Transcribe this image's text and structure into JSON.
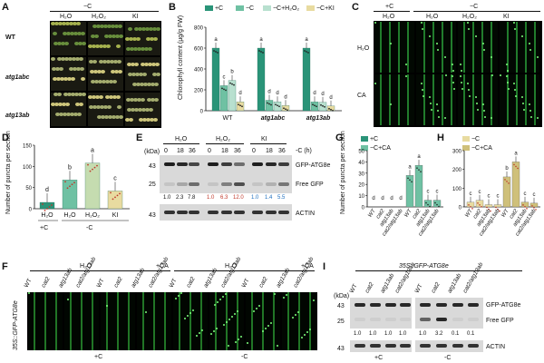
{
  "panelA": {
    "label": "A",
    "header": "−C",
    "cols": [
      "H₂O",
      "H₂O₂",
      "KI"
    ],
    "rows": [
      "WT",
      "atg1abc",
      "atg13ab"
    ]
  },
  "panelB": {
    "label": "B",
    "legend": [
      "+C",
      "−C",
      "−C+H₂O₂",
      "−C+KI"
    ],
    "ylabel": "Chlorophyll content (µg/g FW)",
    "groups": [
      "WT",
      "atg1abc",
      "atg13ab"
    ],
    "legend_colors": [
      "#2a9478",
      "#6fc1a3",
      "#b8e0cf",
      "#e8dba0"
    ]
  },
  "panelC": {
    "label": "C",
    "header_plus": "+C",
    "header_minus": "−C",
    "cols": [
      "H₂O",
      "H₂O",
      "H₂O₂",
      "KI"
    ],
    "rows": [
      "H₂O",
      "CA"
    ]
  },
  "panelD": {
    "label": "D",
    "ylabel": "Number of puncta per section",
    "xticks": [
      "H₂O",
      "H₂O",
      "H₂O₂",
      "KI"
    ],
    "group_label_plus": "+C",
    "group_label_minus": "-C"
  },
  "panelE": {
    "label": "E",
    "conditions": [
      "H₂O",
      "H₂O₂",
      "KI"
    ],
    "times": [
      "0",
      "18",
      "36",
      "0",
      "18",
      "36",
      "0",
      "18",
      "36"
    ],
    "time_label": "-C (h)",
    "kda_label": "(kDa)",
    "marker_43": "43",
    "marker_25": "25",
    "band_gfp_atg8e": "GFP-ATG8e",
    "band_free_gfp": "Free GFP",
    "band_actin": "ACTIN",
    "ratios": [
      "1.0",
      "2.3",
      "7.8",
      "1.0",
      "6.3",
      "12.0",
      "1.0",
      "1.4",
      "5.5"
    ]
  },
  "panelG": {
    "label": "G",
    "legend": [
      "+C",
      "−C+CA"
    ],
    "ylabel": "Number of puncta per section",
    "xticks": [
      "WT",
      "cat2",
      "atg13ab",
      "cat2/atg13ab"
    ]
  },
  "panelH": {
    "label": "H",
    "legend": [
      "−C",
      "−C+CA"
    ],
    "xticks": [
      "WT",
      "cat2",
      "atg13ab",
      "cat2/atg13ab"
    ]
  },
  "panelF": {
    "label": "F",
    "side_label": "35S::GFP-ATG8e",
    "header_h2o": "H₂O",
    "header_ca": "+CA",
    "genotypes": [
      "WT",
      "cat2",
      "atg13ab",
      "cat2/atg13ab"
    ],
    "footer_plus": "+C",
    "footer_minus": "-C"
  },
  "panelI": {
    "label": "I",
    "title": "35S::GFP-ATG8e",
    "genotypes": [
      "WT",
      "cat2",
      "atg13ab",
      "cat2/atg13ab"
    ],
    "kda_label": "(kDa)",
    "marker_43": "43",
    "marker_25": "25",
    "band_gfp_atg8e": "GFP-ATG8e",
    "band_free_gfp": "Free GFP",
    "band_actin": "ACTIN",
    "ratios": [
      "1.0",
      "1.0",
      "1.0",
      "1.0",
      "1.0",
      "3.2",
      "0.1",
      "0.1"
    ],
    "footer_plus": "+C",
    "footer_minus": "-C"
  },
  "chart_data": [
    {
      "panel": "B",
      "type": "bar",
      "ylabel": "Chlorophyll content (µg/g FW)",
      "ylim": [
        0,
        800
      ],
      "yticks": [
        0,
        200,
        400,
        600,
        800
      ],
      "categories": [
        "WT",
        "atg1abc",
        "atg13ab"
      ],
      "series": [
        {
          "name": "+C",
          "values": [
            600,
            600,
            600
          ]
        },
        {
          "name": "−C",
          "values": [
            240,
            100,
            85
          ]
        },
        {
          "name": "−C+H₂O₂",
          "values": [
            290,
            85,
            80
          ]
        },
        {
          "name": "−C+KI",
          "values": [
            85,
            50,
            45
          ]
        }
      ],
      "significance": [
        [
          "a",
          "c",
          "b",
          "d"
        ],
        [
          "a",
          "d",
          "d",
          "d"
        ],
        [
          "a",
          "d",
          "d",
          "d"
        ]
      ]
    },
    {
      "panel": "D",
      "type": "bar",
      "ylabel": "Number of puncta per section",
      "ylim": [
        0,
        150
      ],
      "yticks": [
        0,
        50,
        100,
        150
      ],
      "categories": [
        "H₂O",
        "H₂O",
        "H₂O₂",
        "KI"
      ],
      "values": [
        15,
        68,
        108,
        42
      ],
      "significance": [
        "d",
        "b",
        "a",
        "c"
      ]
    },
    {
      "panel": "G",
      "type": "bar",
      "ylabel": "Number of puncta per section",
      "ylim": [
        0,
        50
      ],
      "yticks": [
        0,
        10,
        20,
        30,
        40,
        50
      ],
      "categories": [
        "WT",
        "cat2",
        "atg13ab",
        "cat2/atg13ab",
        "WT",
        "cat2",
        "atg13ab",
        "cat2/atg13ab"
      ],
      "series": [
        {
          "name": "+C",
          "values": [
            0,
            0,
            0,
            0,
            28,
            37,
            6,
            6
          ]
        }
      ],
      "significance": [
        "d",
        "d",
        "d",
        "d",
        "a",
        "a",
        "c",
        "c"
      ]
    },
    {
      "panel": "H",
      "type": "bar",
      "ylim": [
        0,
        300
      ],
      "yticks": [
        0,
        100,
        200,
        300
      ],
      "categories": [
        "WT",
        "cat2",
        "atg13ab",
        "cat2/atg13ab",
        "WT",
        "cat2",
        "atg13ab",
        "cat2/atg13ab"
      ],
      "series": [
        {
          "name": "−C",
          "values": [
            25,
            35,
            12,
            12,
            160,
            240,
            25,
            20
          ]
        }
      ],
      "significance": [
        "c",
        "c",
        "c",
        "c",
        "b",
        "a",
        "c",
        "c"
      ]
    }
  ]
}
